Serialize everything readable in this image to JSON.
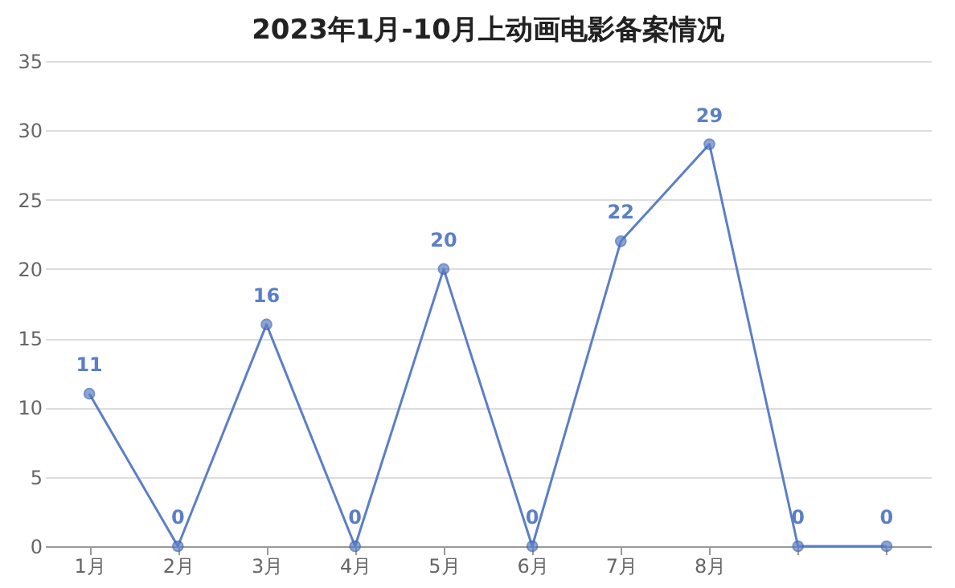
{
  "chart_data": {
    "type": "line",
    "title": "2023年1月-10月上动画电影备案情况",
    "categories": [
      "1月",
      "2月",
      "3月",
      "4月",
      "5月",
      "6月",
      "7月",
      "8月",
      null,
      null
    ],
    "series": [
      {
        "color": "#5b7fc7",
        "values": [
          11,
          0,
          16,
          0,
          20,
          0,
          22,
          29,
          0,
          0
        ]
      }
    ],
    "ylim": [
      0,
      35
    ],
    "yticks": [
      0,
      5,
      10,
      15,
      20,
      25,
      30,
      35
    ],
    "grid": "y",
    "marker": "circle",
    "line_style": "solid",
    "data_labels": true
  }
}
